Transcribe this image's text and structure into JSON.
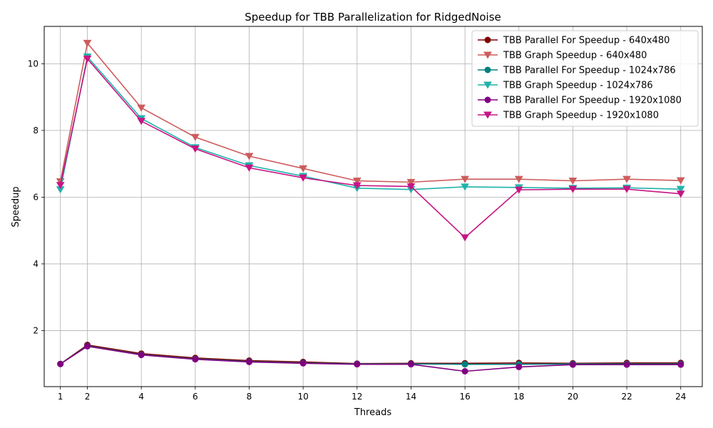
{
  "chart_data": {
    "type": "line",
    "title": "Speedup for TBB Parallelization for RidgedNoise",
    "xlabel": "Threads",
    "ylabel": "Speedup",
    "x": [
      1,
      2,
      4,
      6,
      8,
      10,
      12,
      14,
      16,
      18,
      20,
      22,
      24
    ],
    "xticks": [
      1,
      2,
      4,
      6,
      8,
      10,
      12,
      14,
      16,
      18,
      20,
      22,
      24
    ],
    "yticks": [
      2,
      4,
      6,
      8,
      10
    ],
    "xlim": [
      0.4,
      24.8
    ],
    "ylim": [
      0.32,
      11.12
    ],
    "grid": true,
    "legend_position": "top-right",
    "series": [
      {
        "name": "TBB Parallel For Speedup - 640x480",
        "color": "#800000",
        "marker": "circle",
        "values": [
          1.0,
          1.57,
          1.31,
          1.18,
          1.1,
          1.06,
          1.01,
          1.02,
          1.02,
          1.03,
          1.02,
          1.03,
          1.03
        ]
      },
      {
        "name": "TBB Graph Speedup - 640x480",
        "color": "#cd5c5c",
        "marker": "triangle-down",
        "values": [
          6.47,
          10.62,
          8.68,
          7.8,
          7.23,
          6.86,
          6.49,
          6.45,
          6.54,
          6.54,
          6.49,
          6.54,
          6.5
        ]
      },
      {
        "name": "TBB Parallel For Speedup - 1024x786",
        "color": "#008080",
        "marker": "circle",
        "values": [
          1.0,
          1.54,
          1.28,
          1.15,
          1.07,
          1.03,
          1.0,
          1.0,
          0.99,
          0.99,
          1.0,
          1.0,
          1.0
        ]
      },
      {
        "name": "TBB Graph Speedup - 1024x786",
        "color": "#20b2aa",
        "marker": "triangle-down",
        "values": [
          6.23,
          10.21,
          8.36,
          7.49,
          6.95,
          6.63,
          6.27,
          6.23,
          6.31,
          6.29,
          6.27,
          6.28,
          6.24
        ]
      },
      {
        "name": "TBB Parallel For Speedup - 1920x1080",
        "color": "#800080",
        "marker": "circle",
        "values": [
          1.0,
          1.53,
          1.27,
          1.14,
          1.06,
          1.02,
          0.99,
          0.99,
          0.78,
          0.91,
          0.98,
          0.98,
          0.98
        ]
      },
      {
        "name": "TBB Graph Speedup - 1920x1080",
        "color": "#c71585",
        "marker": "triangle-down",
        "values": [
          6.36,
          10.15,
          8.28,
          7.45,
          6.88,
          6.58,
          6.35,
          6.32,
          4.79,
          6.22,
          6.24,
          6.24,
          6.1
        ]
      }
    ]
  }
}
